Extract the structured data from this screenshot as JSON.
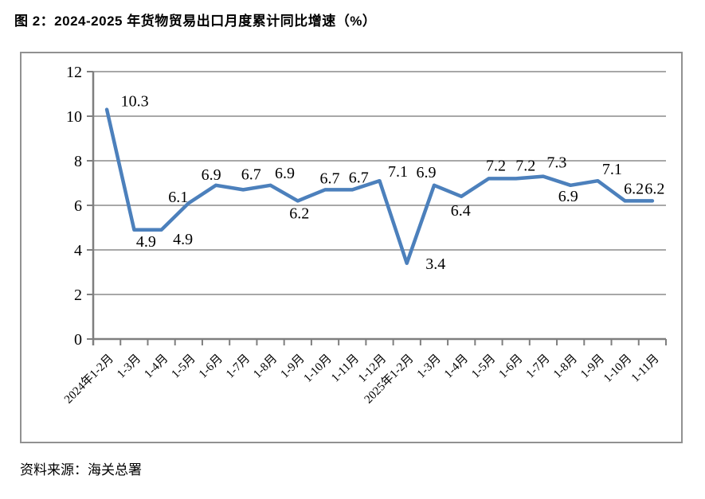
{
  "figure": {
    "title": "图 2：2024-2025 年货物贸易出口月度累计同比增速（%）",
    "source": "资料来源：海关总署"
  },
  "chart_data": {
    "type": "line",
    "title": "图 2：2024-2025 年货物贸易出口月度累计同比增速（%）",
    "categories": [
      "2024年1-2月",
      "1-3月",
      "1-4月",
      "1-5月",
      "1-6月",
      "1-7月",
      "1-8月",
      "1-9月",
      "1-10月",
      "1-11月",
      "1-12月",
      "2025年1-2月",
      "1-3月",
      "1-4月",
      "1-5月",
      "1-6月",
      "1-7月",
      "1-8月",
      "1-9月",
      "1-10月",
      "1-11月"
    ],
    "values": [
      10.3,
      4.9,
      4.9,
      6.1,
      6.9,
      6.7,
      6.9,
      6.2,
      6.7,
      6.7,
      7.1,
      3.4,
      6.9,
      6.4,
      7.2,
      7.2,
      7.3,
      6.9,
      7.1,
      6.2,
      6.2
    ],
    "xlabel": "",
    "ylabel": "",
    "ylim": [
      0,
      12
    ],
    "y_ticks": [
      0,
      2,
      4,
      6,
      8,
      10,
      12
    ],
    "grid": true,
    "legend": "none",
    "data_labels_shown": true,
    "colors": {
      "line": "#4C80BC",
      "grid": "#8C8C8C",
      "axis": "#7F7F7F",
      "text": "#000000",
      "frame_border": "#919191"
    },
    "source": "资料来源：海关总署"
  }
}
